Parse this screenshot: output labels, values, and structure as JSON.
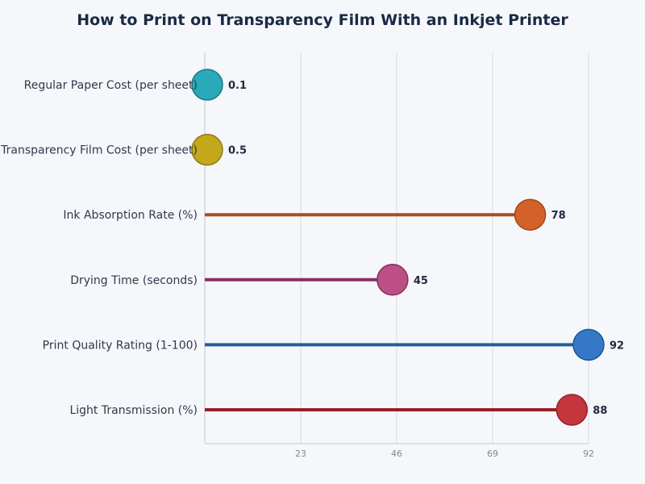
{
  "chart_data": {
    "type": "lollipop",
    "title": "How to Print on Transparency Film With an Inkjet Printer",
    "categories": [
      "Regular Paper Cost (per sheet)",
      "Transparency Film Cost (per sheet)",
      "Ink Absorption Rate (%)",
      "Drying Time (seconds)",
      "Print Quality Rating (1-100)",
      "Light Transmission (%)"
    ],
    "values": [
      0.1,
      0.5,
      78,
      45,
      92,
      88
    ],
    "value_labels": [
      "0.1",
      "0.5",
      "78",
      "45",
      "92",
      "88"
    ],
    "colors": [
      "#2aa9b8",
      "#c4a81c",
      "#d2622a",
      "#bb4f86",
      "#3478c6",
      "#c4353d"
    ],
    "stem_colors": [
      "#2aa9b8",
      "#c4a81c",
      "#a84d21",
      "#8a2f60",
      "#245d98",
      "#9a1f27"
    ],
    "stroke_colors": [
      "#1a7a86",
      "#8f7a10",
      "#a2481c",
      "#862e5d",
      "#1f5696",
      "#952228"
    ],
    "x_ticks": [
      23,
      46,
      69,
      92
    ],
    "x_tick_labels": [
      "23",
      "46",
      "69",
      "92"
    ],
    "xlim": [
      0,
      92
    ],
    "grid": true,
    "xlabel": "",
    "ylabel": ""
  }
}
